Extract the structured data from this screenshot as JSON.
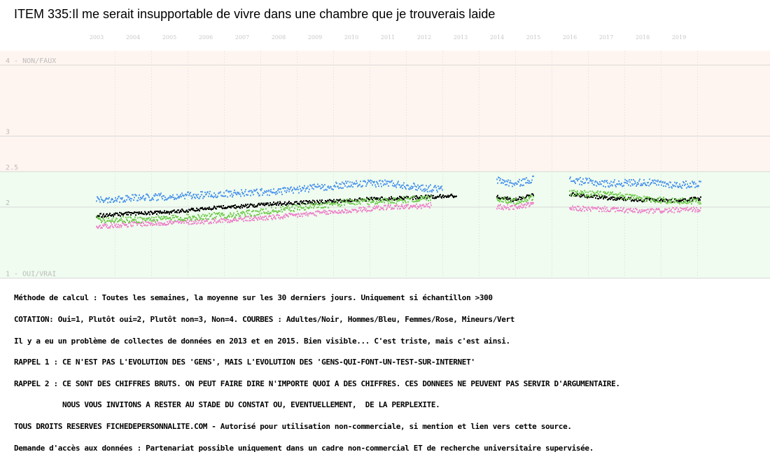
{
  "title": "ITEM 335:Il me serait insupportable de vivre dans une chambre que je trouverais laide",
  "colors": {
    "top_band": "#fff5f0",
    "bottom_band": "#effcef",
    "grid": "#d8d8d8",
    "adults": "#000000",
    "men": "#5599ee",
    "women": "#ee88cc",
    "minors": "#77cc55"
  },
  "notes": [
    "Méthode de calcul : Toutes les semaines, la moyenne sur les 30 derniers jours. Uniquement si échantillon >300",
    "COTATION: Oui=1, Plutôt oui=2, Plutôt non=3, Non=4. COURBES : Adultes/Noir, Hommes/Bleu, Femmes/Rose, Mineurs/Vert",
    "Il y a eu un problème de collectes de données en 2013 et en 2015. Bien visible... C'est triste, mais c'est ainsi.",
    "RAPPEL 1 : CE N'EST PAS L'EVOLUTION DES 'GENS', MAIS L'EVOLUTION DES 'GENS-QUI-FONT-UN-TEST-SUR-INTERNET'",
    "RAPPEL 2 : CE SONT DES CHIFFRES BRUTS. ON PEUT FAIRE DIRE N'IMPORTE QUOI A DES CHIFFRES. CES DONNEES NE PEUVENT PAS SERVIR D'ARGUMENTAIRE.",
    "           NOUS VOUS INVITONS A RESTER AU STADE DU CONSTAT OU, EVENTUELLEMENT,  DE LA PERPLEXITE.",
    "TOUS DROITS RESERVES FICHEDEPERSONNALITE.COM - Autorisé pour utilisation non-commerciale, si mention et lien vers cette source.",
    "Demande d'accès aux données : Partenariat possible uniquement dans un cadre non-commercial ET de recherche universitaire supervisée."
  ],
  "chart_data": {
    "type": "scatter",
    "x_range": [
      2002.5,
      2020.5
    ],
    "years": [
      "2003",
      "2004",
      "2005",
      "2006",
      "2007",
      "2008",
      "2009",
      "2010",
      "2011",
      "2012",
      "2013",
      "2014",
      "2015",
      "2016",
      "2017",
      "2018",
      "2019"
    ],
    "y_ticks": [
      {
        "value": 4,
        "label": "4 - NON/FAUX"
      },
      {
        "value": 3,
        "label": "3"
      },
      {
        "value": 2.5,
        "label": "2.5"
      },
      {
        "value": 2,
        "label": "2"
      },
      {
        "value": 1,
        "label": "1 - OUI/VRAI"
      }
    ],
    "ylim": [
      1,
      4.2
    ],
    "series": [
      {
        "name": "Adultes",
        "color": "#000000",
        "segments": [
          {
            "x": [
              2003.0,
              2004.0,
              2005.0,
              2006.0,
              2007.0,
              2008.0,
              2009.0,
              2010.0,
              2011.0,
              2012.0,
              2012.9
            ],
            "y": [
              1.88,
              1.91,
              1.93,
              1.98,
              2.01,
              2.05,
              2.07,
              2.1,
              2.12,
              2.14,
              2.16
            ]
          },
          {
            "x": [
              2014.0,
              2014.5,
              2015.0
            ],
            "y": [
              2.14,
              2.1,
              2.18
            ]
          },
          {
            "x": [
              2016.0,
              2017.0,
              2018.0,
              2019.0,
              2019.6
            ],
            "y": [
              2.18,
              2.13,
              2.1,
              2.09,
              2.12
            ]
          }
        ]
      },
      {
        "name": "Hommes",
        "color": "#5599ee",
        "segments": [
          {
            "x": [
              2003.0,
              2004.0,
              2005.0,
              2006.0,
              2007.0,
              2008.0,
              2009.0,
              2010.0,
              2011.0,
              2012.0,
              2012.5
            ],
            "y": [
              2.1,
              2.13,
              2.15,
              2.17,
              2.2,
              2.22,
              2.27,
              2.32,
              2.34,
              2.27,
              2.25
            ]
          },
          {
            "x": [
              2014.0,
              2014.5,
              2015.0
            ],
            "y": [
              2.38,
              2.32,
              2.4
            ]
          },
          {
            "x": [
              2016.0,
              2017.0,
              2018.0,
              2019.0,
              2019.6
            ],
            "y": [
              2.38,
              2.33,
              2.35,
              2.31,
              2.33
            ]
          }
        ]
      },
      {
        "name": "Femmes",
        "color": "#ee88cc",
        "segments": [
          {
            "x": [
              2003.0,
              2004.0,
              2005.0,
              2006.0,
              2007.0,
              2008.0,
              2009.0,
              2010.0,
              2011.0,
              2012.0,
              2012.2
            ],
            "y": [
              1.73,
              1.76,
              1.78,
              1.8,
              1.83,
              1.86,
              1.91,
              1.95,
              2.0,
              2.01,
              2.03
            ]
          },
          {
            "x": [
              2014.0,
              2014.5,
              2015.0
            ],
            "y": [
              2.0,
              2.0,
              2.04
            ]
          },
          {
            "x": [
              2016.0,
              2017.0,
              2018.0,
              2019.0,
              2019.6
            ],
            "y": [
              1.98,
              1.97,
              1.94,
              1.96,
              1.97
            ]
          }
        ]
      },
      {
        "name": "Mineurs",
        "color": "#77cc55",
        "segments": [
          {
            "x": [
              2003.0,
              2004.0,
              2005.0,
              2006.0,
              2007.0,
              2008.0,
              2009.0,
              2010.0,
              2011.0,
              2012.0,
              2012.2
            ],
            "y": [
              1.83,
              1.82,
              1.84,
              1.87,
              1.9,
              1.96,
              2.02,
              2.07,
              2.09,
              2.12,
              2.14
            ]
          },
          {
            "x": [
              2014.0,
              2014.5,
              2015.0
            ],
            "y": [
              2.12,
              2.08,
              2.14
            ]
          },
          {
            "x": [
              2016.0,
              2017.0,
              2018.0,
              2019.0,
              2019.6
            ],
            "y": [
              2.2,
              2.18,
              2.12,
              2.08,
              2.09
            ]
          }
        ]
      }
    ]
  }
}
